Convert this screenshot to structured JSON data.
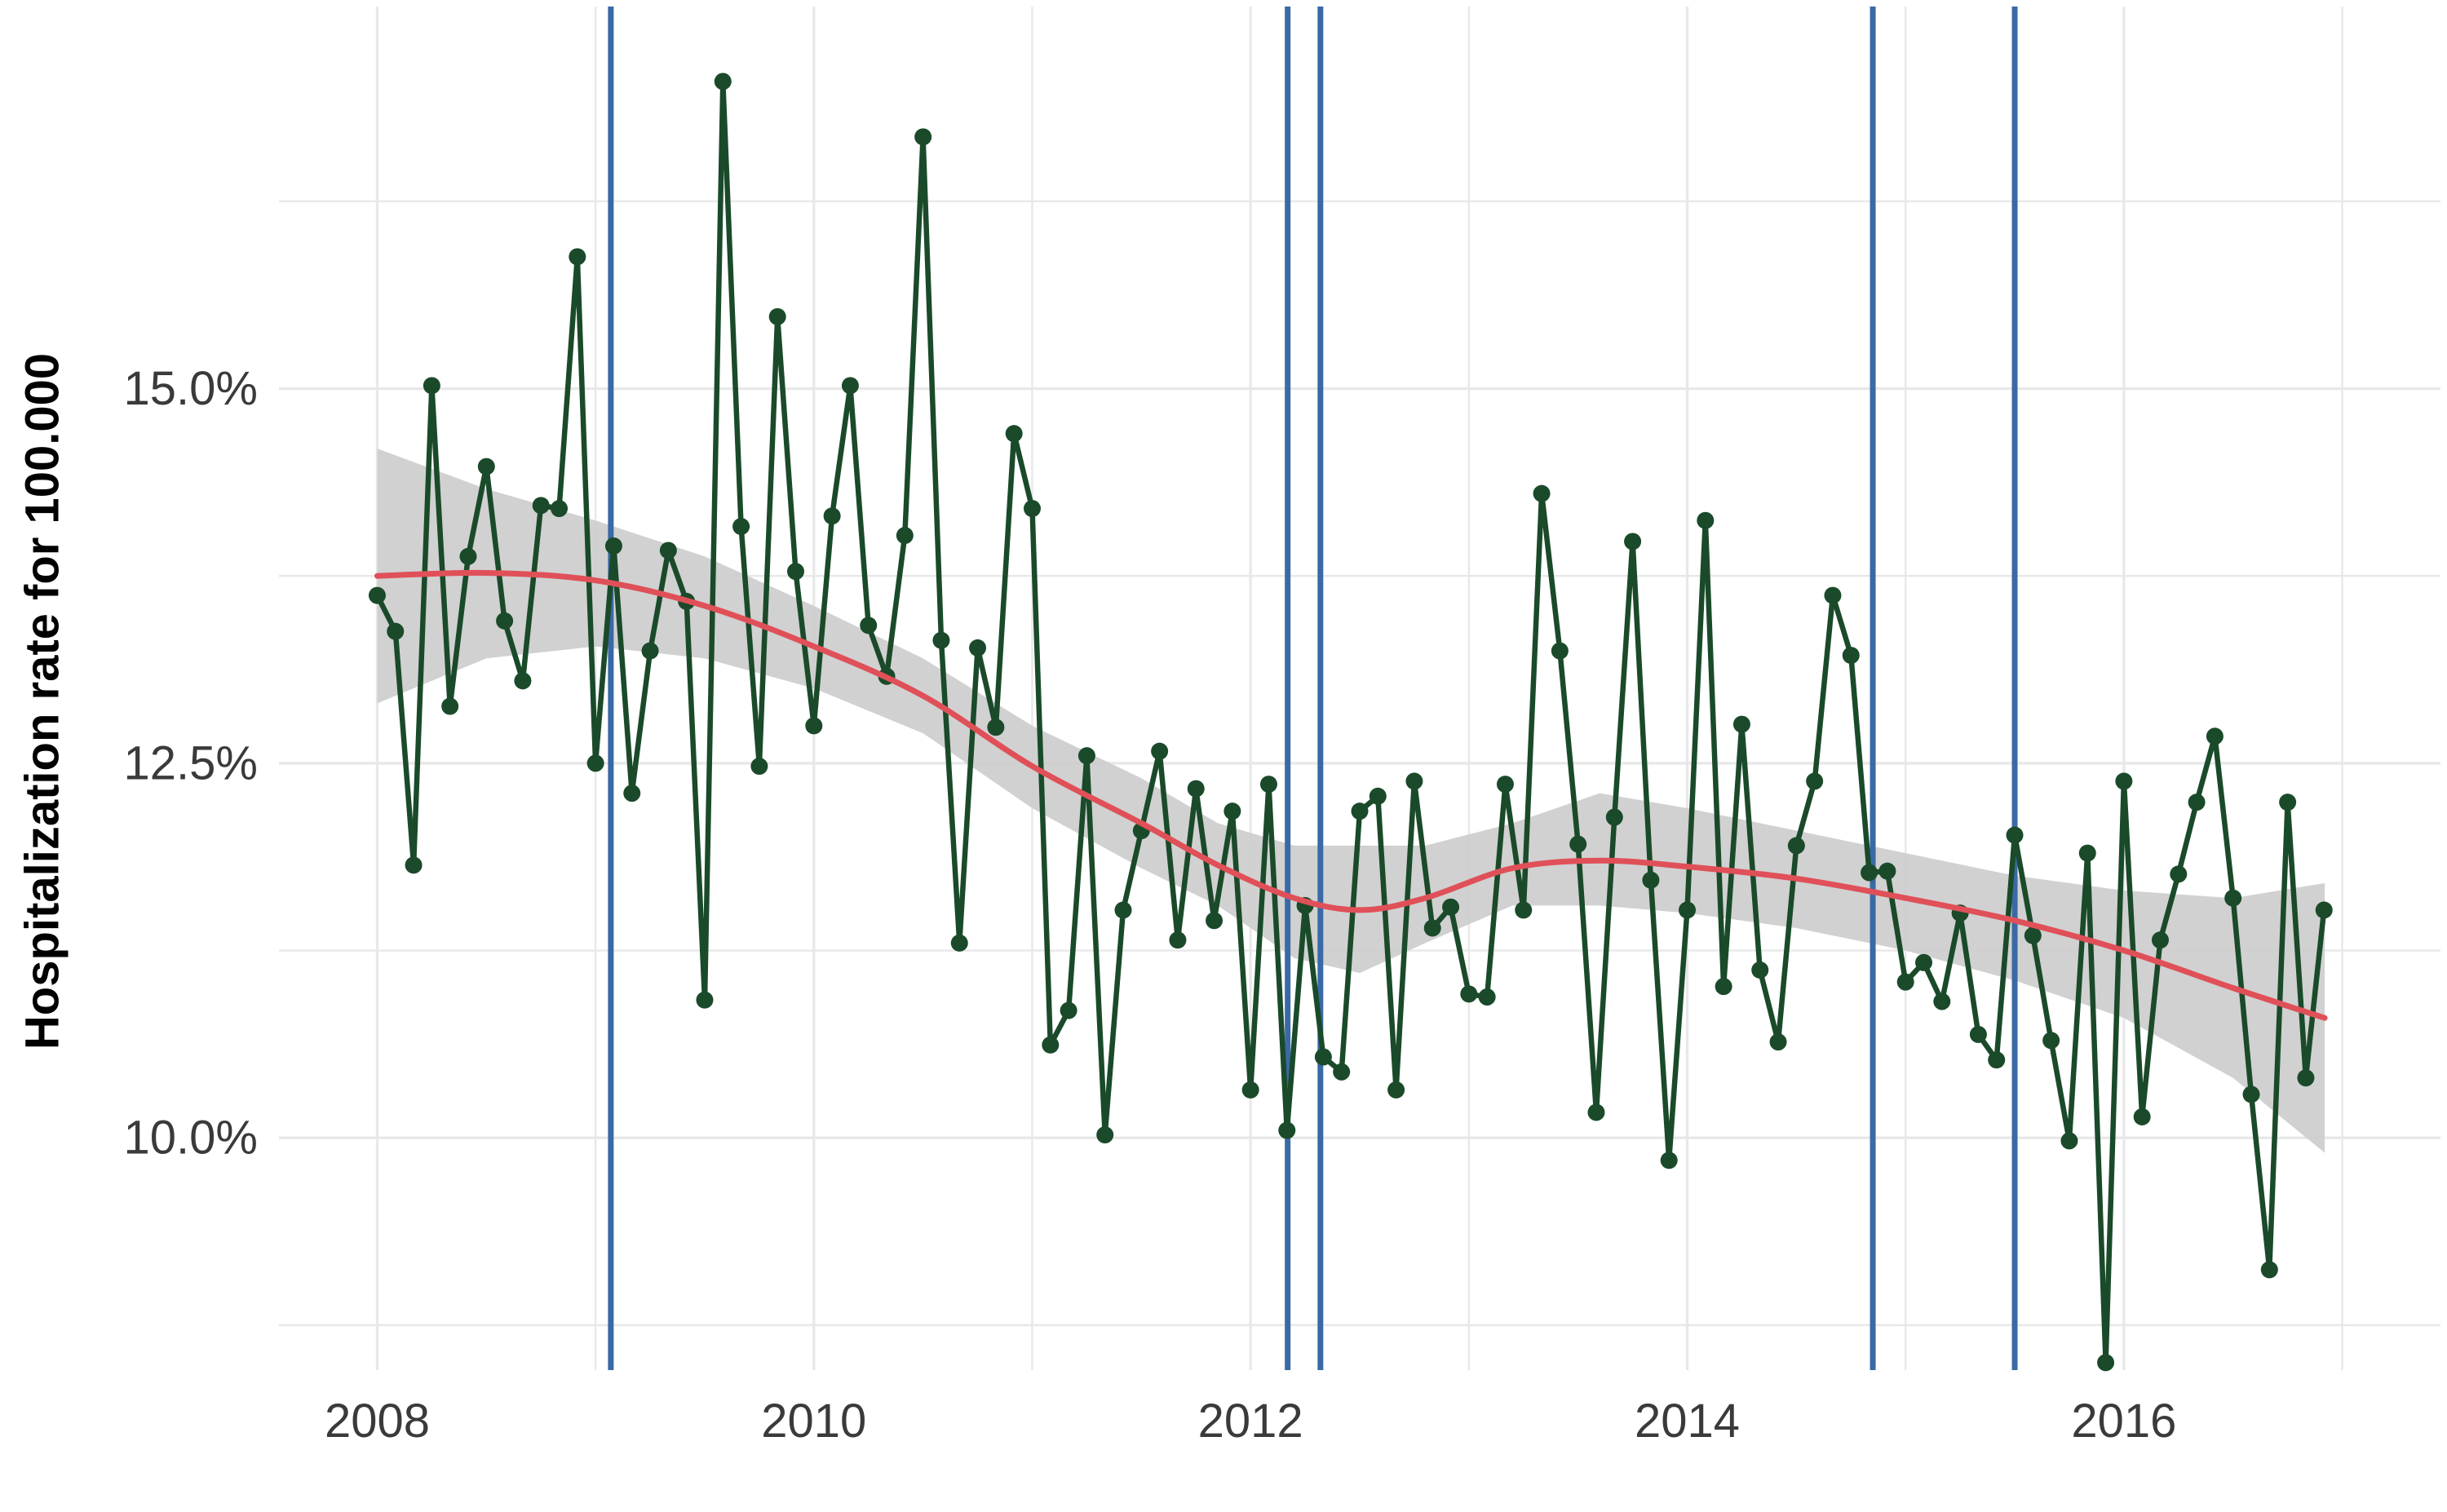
{
  "chart_data": {
    "type": "line",
    "title": "",
    "xlabel": "",
    "ylabel": "Hospitalization rate for 100.000",
    "xlim": [
      2007.55,
      2017.45
    ],
    "ylim": [
      8.45,
      17.55
    ],
    "x_ticks": [
      2008,
      2010,
      2012,
      2014,
      2016
    ],
    "x_tick_labels": [
      "2008",
      "2010",
      "2012",
      "2014",
      "2016"
    ],
    "y_ticks": [
      10.0,
      12.5,
      15.0
    ],
    "y_tick_labels": [
      "10.0%",
      "12.5%",
      "15.0%"
    ],
    "grid": true,
    "legend": "none",
    "series": [
      {
        "kind": "observed",
        "color": "#1a4a2a",
        "values": [
          13.62,
          13.38,
          11.82,
          15.02,
          12.88,
          13.88,
          14.48,
          13.45,
          13.05,
          14.22,
          14.2,
          15.88,
          12.5,
          13.95,
          12.3,
          13.25,
          13.92,
          13.58,
          10.92,
          17.05,
          14.08,
          12.48,
          15.48,
          13.78,
          12.75,
          14.15,
          15.02,
          13.42,
          13.08,
          14.02,
          16.68,
          13.32,
          11.3,
          13.27,
          12.74,
          14.7,
          14.2,
          10.62,
          10.85,
          12.55,
          10.02,
          11.52,
          12.05,
          12.58,
          11.32,
          12.33,
          11.45,
          12.18,
          10.32,
          12.36,
          10.05,
          11.55,
          10.54,
          10.44,
          12.18,
          12.28,
          10.32,
          12.38,
          11.4,
          11.54,
          10.96,
          10.94,
          12.36,
          11.52,
          14.3,
          13.25,
          11.96,
          10.17,
          12.14,
          13.98,
          11.72,
          9.85,
          11.52,
          14.12,
          11.01,
          12.76,
          11.12,
          10.64,
          11.95,
          12.38,
          13.62,
          13.22,
          11.77,
          11.78,
          11.04,
          11.17,
          10.91,
          11.5,
          10.69,
          10.52,
          12.02,
          11.35,
          10.65,
          9.98,
          11.9,
          8.5,
          12.38,
          10.14,
          11.32,
          11.76,
          12.24,
          12.68,
          11.6,
          10.29,
          9.12,
          12.24,
          10.4,
          11.52
        ]
      },
      {
        "kind": "smooth",
        "color": "#e05058",
        "x": [
          2008,
          2008.5,
          2009,
          2009.5,
          2010,
          2010.5,
          2011,
          2011.5,
          2011.85,
          2012.2,
          2012.5,
          2012.8,
          2013.2,
          2013.6,
          2014,
          2014.5,
          2015,
          2015.5,
          2016,
          2016.5,
          2016.92
        ],
        "values": [
          13.75,
          13.77,
          13.72,
          13.55,
          13.28,
          12.95,
          12.48,
          12.1,
          11.82,
          11.6,
          11.52,
          11.6,
          11.8,
          11.85,
          11.81,
          11.73,
          11.6,
          11.45,
          11.25,
          11.0,
          10.8
        ]
      }
    ],
    "confidence_band": {
      "color": "#cccccc",
      "x": [
        2008,
        2008.5,
        2009,
        2009.5,
        2010,
        2010.5,
        2011,
        2011.5,
        2011.85,
        2012.2,
        2012.5,
        2012.8,
        2013.2,
        2013.6,
        2014,
        2014.5,
        2015,
        2015.5,
        2016,
        2016.5,
        2016.92
      ],
      "lower": [
        12.9,
        13.2,
        13.28,
        13.2,
        13.0,
        12.7,
        12.2,
        11.8,
        11.55,
        11.2,
        11.1,
        11.3,
        11.55,
        11.55,
        11.5,
        11.4,
        11.25,
        11.05,
        10.8,
        10.4,
        9.9
      ],
      "upper": [
        14.6,
        14.33,
        14.12,
        13.88,
        13.55,
        13.2,
        12.75,
        12.4,
        12.1,
        11.95,
        11.95,
        11.95,
        12.1,
        12.3,
        12.2,
        12.05,
        11.9,
        11.75,
        11.65,
        11.6,
        11.7
      ]
    },
    "vertical_lines": {
      "color": "#3a6aa5",
      "x": [
        2009.07,
        2012.17,
        2012.32,
        2014.85,
        2015.5
      ]
    }
  }
}
